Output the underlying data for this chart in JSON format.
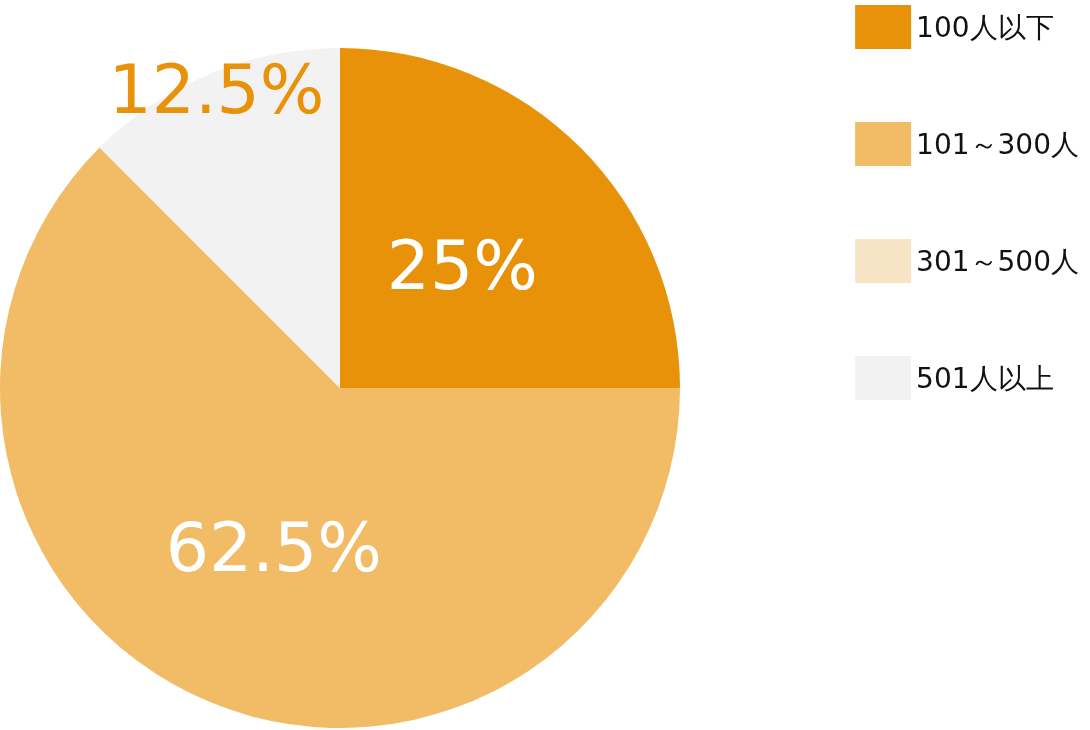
{
  "chart_data": {
    "type": "pie",
    "categories": [
      "100人以下",
      "101～300人",
      "301～500人",
      "501人以上"
    ],
    "values": [
      25,
      62.5,
      0,
      12.5
    ],
    "colors": [
      "#e8920a",
      "#f2bb66",
      "#f7e4c4",
      "#f2f2f2"
    ],
    "value_labels": [
      "25%",
      "62.5%",
      null,
      "12.5%"
    ],
    "legend": "right"
  }
}
